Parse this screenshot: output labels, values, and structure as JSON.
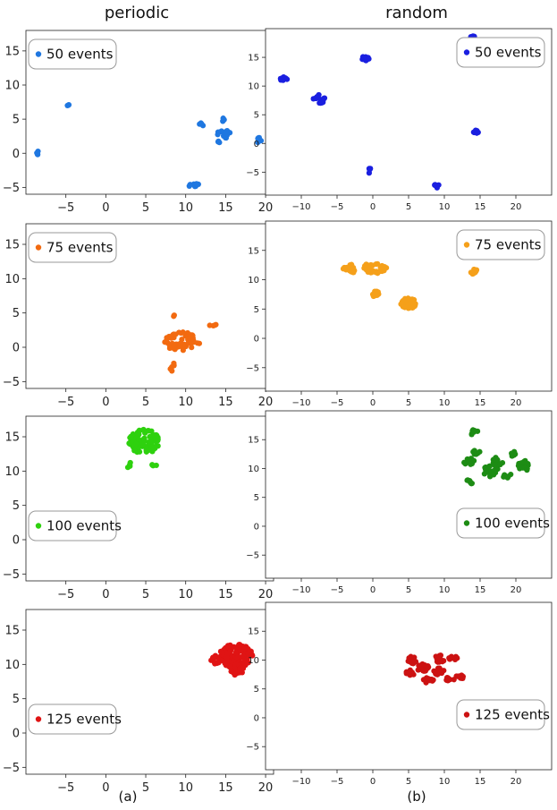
{
  "column_titles": [
    "periodic",
    "random"
  ],
  "subfigure_labels": [
    "(a)",
    "(b)"
  ],
  "chart_data": [
    {
      "id": "a1",
      "type": "scatter",
      "column": "periodic",
      "legend": "50 events",
      "legend_loc": "upper left",
      "color": "#1f77e0",
      "xlim": [
        -10,
        21
      ],
      "ylim": [
        -6,
        18
      ],
      "xticks": [
        -5,
        0,
        5,
        10,
        15,
        20
      ],
      "yticks": [
        -5,
        0,
        5,
        10,
        15
      ],
      "clusters": [
        {
          "x": -8.5,
          "y": 0,
          "sx": 0.15,
          "sy": 0.2,
          "n": 4
        },
        {
          "x": -4.7,
          "y": 7,
          "sx": 0.1,
          "sy": 0.1,
          "n": 3
        },
        {
          "x": 12,
          "y": 4.2,
          "sx": 0.2,
          "sy": 0.2,
          "n": 4
        },
        {
          "x": 14.6,
          "y": 4.9,
          "sx": 0.15,
          "sy": 0.2,
          "n": 3
        },
        {
          "x": 15,
          "y": 2.8,
          "sx": 0.8,
          "sy": 0.4,
          "n": 16
        },
        {
          "x": 14,
          "y": 1.6,
          "sx": 0.2,
          "sy": 0.2,
          "n": 3
        },
        {
          "x": 19.2,
          "y": 1.9,
          "sx": 0.2,
          "sy": 0.3,
          "n": 5
        },
        {
          "x": 10.8,
          "y": -4.6,
          "sx": 0.5,
          "sy": 0.2,
          "n": 8
        }
      ]
    },
    {
      "id": "b1",
      "type": "scatter",
      "column": "random",
      "legend": "50 events",
      "legend_loc": "upper right",
      "color": "#1a1fe0",
      "xlim": [
        -15,
        25
      ],
      "ylim": [
        -9,
        20
      ],
      "xticks": [
        -10,
        -5,
        0,
        5,
        10,
        15,
        20
      ],
      "yticks": [
        -5,
        0,
        5,
        10,
        15
      ],
      "clusters": [
        {
          "x": -12.5,
          "y": 11.2,
          "sx": 0.35,
          "sy": 0.3,
          "n": 10
        },
        {
          "x": -7.5,
          "y": 7.8,
          "sx": 0.6,
          "sy": 0.5,
          "n": 14
        },
        {
          "x": -1,
          "y": 14.8,
          "sx": 0.3,
          "sy": 0.4,
          "n": 10
        },
        {
          "x": -0.5,
          "y": -4.7,
          "sx": 0.15,
          "sy": 0.3,
          "n": 6
        },
        {
          "x": 14,
          "y": 18.5,
          "sx": 0.2,
          "sy": 0.15,
          "n": 4
        },
        {
          "x": 14.3,
          "y": 2.1,
          "sx": 0.3,
          "sy": 0.35,
          "n": 10
        },
        {
          "x": 9,
          "y": -7.4,
          "sx": 0.3,
          "sy": 0.2,
          "n": 6
        }
      ]
    },
    {
      "id": "a2",
      "type": "scatter",
      "column": "periodic",
      "legend": "75 events",
      "legend_loc": "upper left",
      "color": "#f26a10",
      "xlim": [
        -10,
        21
      ],
      "ylim": [
        -6,
        18
      ],
      "xticks": [
        -5,
        0,
        5,
        10,
        15,
        20
      ],
      "yticks": [
        -5,
        0,
        5,
        10,
        15
      ],
      "clusters": [
        {
          "x": 9.5,
          "y": 0.8,
          "sx": 1.4,
          "sy": 0.9,
          "n": 55
        },
        {
          "x": 13.6,
          "y": 3.2,
          "sx": 0.4,
          "sy": 0.15,
          "n": 4
        },
        {
          "x": 8.3,
          "y": -2.7,
          "sx": 0.2,
          "sy": 0.5,
          "n": 5
        },
        {
          "x": 8.5,
          "y": 4.7,
          "sx": 0.15,
          "sy": 0.15,
          "n": 2
        }
      ]
    },
    {
      "id": "b2",
      "type": "scatter",
      "column": "random",
      "legend": "75 events",
      "legend_loc": "upper right",
      "color": "#f5a01a",
      "xlim": [
        -15,
        25
      ],
      "ylim": [
        -9,
        20
      ],
      "xticks": [
        -10,
        -5,
        0,
        5,
        10,
        15,
        20
      ],
      "yticks": [
        -5,
        0,
        5,
        10,
        15
      ],
      "clusters": [
        {
          "x": -3.2,
          "y": 11.8,
          "sx": 0.6,
          "sy": 0.5,
          "n": 18
        },
        {
          "x": 0.3,
          "y": 12,
          "sx": 1,
          "sy": 0.6,
          "n": 30
        },
        {
          "x": 0.3,
          "y": 7.6,
          "sx": 0.5,
          "sy": 0.3,
          "n": 14
        },
        {
          "x": 5,
          "y": 6,
          "sx": 0.7,
          "sy": 0.6,
          "n": 60
        },
        {
          "x": 14.2,
          "y": 11.3,
          "sx": 0.3,
          "sy": 0.3,
          "n": 10
        }
      ]
    },
    {
      "id": "a3",
      "type": "scatter",
      "column": "periodic",
      "legend": "100 events",
      "legend_loc": "lower left",
      "color": "#2ed10e",
      "xlim": [
        -10,
        21
      ],
      "ylim": [
        -6,
        18
      ],
      "xticks": [
        -5,
        0,
        5,
        10,
        15,
        20
      ],
      "yticks": [
        -5,
        0,
        5,
        10,
        15
      ],
      "clusters": [
        {
          "x": 4.8,
          "y": 14.3,
          "sx": 1.2,
          "sy": 1.1,
          "n": 90
        },
        {
          "x": 2.8,
          "y": 11,
          "sx": 0.2,
          "sy": 0.3,
          "n": 4
        },
        {
          "x": 6,
          "y": 10.8,
          "sx": 0.4,
          "sy": 0.15,
          "n": 4
        }
      ]
    },
    {
      "id": "b3",
      "type": "scatter",
      "column": "random",
      "legend": "100 events",
      "legend_loc": "lower right",
      "color": "#1d8c14",
      "xlim": [
        -15,
        25
      ],
      "ylim": [
        -9,
        20
      ],
      "xticks": [
        -10,
        -5,
        0,
        5,
        10,
        15,
        20
      ],
      "yticks": [
        -5,
        0,
        5,
        10,
        15
      ],
      "clusters": [
        {
          "x": 14.2,
          "y": 16.2,
          "sx": 0.3,
          "sy": 0.5,
          "n": 10
        },
        {
          "x": 13.5,
          "y": 11.2,
          "sx": 0.5,
          "sy": 0.4,
          "n": 12
        },
        {
          "x": 14.5,
          "y": 12.7,
          "sx": 0.4,
          "sy": 0.3,
          "n": 8
        },
        {
          "x": 13.6,
          "y": 7.7,
          "sx": 0.3,
          "sy": 0.3,
          "n": 8
        },
        {
          "x": 16.5,
          "y": 9.5,
          "sx": 0.8,
          "sy": 0.6,
          "n": 20
        },
        {
          "x": 17.5,
          "y": 11.2,
          "sx": 0.5,
          "sy": 0.5,
          "n": 12
        },
        {
          "x": 19.5,
          "y": 12.6,
          "sx": 0.4,
          "sy": 0.3,
          "n": 8
        },
        {
          "x": 21,
          "y": 10.5,
          "sx": 0.5,
          "sy": 0.7,
          "n": 18
        },
        {
          "x": 18.8,
          "y": 8.8,
          "sx": 0.4,
          "sy": 0.3,
          "n": 8
        }
      ]
    },
    {
      "id": "a4",
      "type": "scatter",
      "column": "periodic",
      "legend": "125 events",
      "legend_loc": "lower left",
      "color": "#e01414",
      "xlim": [
        -10,
        21
      ],
      "ylim": [
        -6,
        18
      ],
      "xticks": [
        -5,
        0,
        5,
        10,
        15,
        20
      ],
      "yticks": [
        -5,
        0,
        5,
        10,
        15
      ],
      "clusters": [
        {
          "x": 16.3,
          "y": 11.2,
          "sx": 1.3,
          "sy": 1.1,
          "n": 130
        },
        {
          "x": 13.8,
          "y": 10.7,
          "sx": 0.4,
          "sy": 0.5,
          "n": 10
        },
        {
          "x": 16.5,
          "y": 9,
          "sx": 0.6,
          "sy": 0.4,
          "n": 10
        }
      ]
    },
    {
      "id": "b4",
      "type": "scatter",
      "column": "random",
      "legend": "125 events",
      "legend_loc": "lower right",
      "color": "#cc1212",
      "xlim": [
        -15,
        25
      ],
      "ylim": [
        -9,
        20
      ],
      "xticks": [
        -10,
        -5,
        0,
        5,
        10,
        15,
        20
      ],
      "yticks": [
        -5,
        0,
        5,
        10,
        15
      ],
      "clusters": [
        {
          "x": 5.5,
          "y": 10,
          "sx": 0.4,
          "sy": 0.4,
          "n": 14
        },
        {
          "x": 5.3,
          "y": 7.8,
          "sx": 0.4,
          "sy": 0.3,
          "n": 12
        },
        {
          "x": 7,
          "y": 8.6,
          "sx": 0.5,
          "sy": 0.5,
          "n": 18
        },
        {
          "x": 7.8,
          "y": 6.5,
          "sx": 0.5,
          "sy": 0.3,
          "n": 12
        },
        {
          "x": 9.3,
          "y": 10.2,
          "sx": 0.5,
          "sy": 0.4,
          "n": 16
        },
        {
          "x": 9.3,
          "y": 8,
          "sx": 0.5,
          "sy": 0.4,
          "n": 14
        },
        {
          "x": 11.2,
          "y": 10.3,
          "sx": 0.4,
          "sy": 0.3,
          "n": 10
        },
        {
          "x": 10.8,
          "y": 6.6,
          "sx": 0.4,
          "sy": 0.3,
          "n": 10
        },
        {
          "x": 12.2,
          "y": 7,
          "sx": 0.4,
          "sy": 0.3,
          "n": 10
        }
      ]
    }
  ]
}
